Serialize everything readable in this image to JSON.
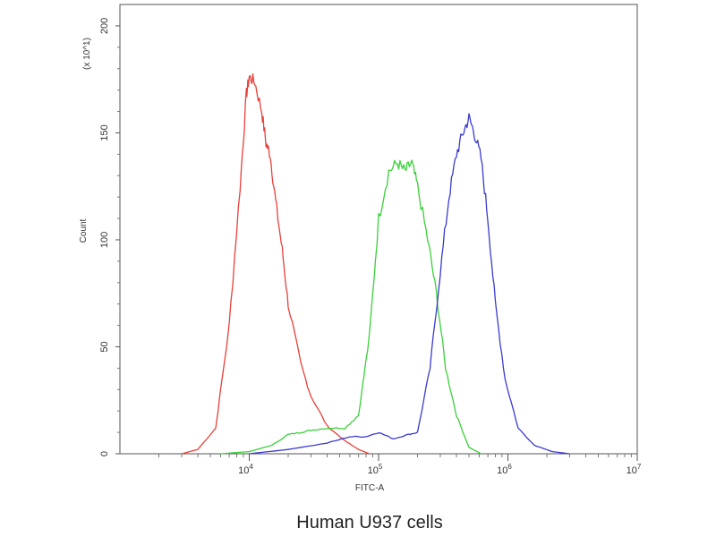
{
  "chart_data": {
    "type": "line",
    "title": "",
    "xlabel": "FITC-A",
    "ylabel": "Count",
    "y_multiplier_label": "(x 10^1)",
    "caption": "Human U937 cells",
    "x_scale": "log",
    "xlim": [
      1000,
      10000000
    ],
    "ylim": [
      0,
      210
    ],
    "grid": false,
    "legend": "none",
    "x_ticks": [
      {
        "value": 10000,
        "base": "10",
        "exp": "4"
      },
      {
        "value": 100000,
        "base": "10",
        "exp": "5"
      },
      {
        "value": 1000000,
        "base": "10",
        "exp": "6"
      },
      {
        "value": 10000000,
        "base": "10",
        "exp": "7"
      }
    ],
    "y_ticks": [
      {
        "value": 0,
        "label": "0"
      },
      {
        "value": 50,
        "label": "50"
      },
      {
        "value": 100,
        "label": "100"
      },
      {
        "value": 150,
        "label": "150"
      },
      {
        "value": 200,
        "label": "200"
      }
    ],
    "series": [
      {
        "color": "#e8403a",
        "x": [
          3000,
          4000,
          5500,
          7000,
          8500,
          9500,
          10000,
          11000,
          12500,
          13500,
          14500,
          16000,
          18000,
          20000,
          25000,
          30000,
          40000,
          55000,
          70000,
          85000
        ],
        "y": [
          0,
          2,
          12,
          60,
          125,
          168,
          176,
          174,
          160,
          145,
          140,
          118,
          95,
          70,
          42,
          27,
          13,
          6,
          2,
          0
        ]
      },
      {
        "color": "#3ad03a",
        "x": [
          6000,
          10000,
          15000,
          20000,
          25000,
          30000,
          40000,
          55000,
          70000,
          85000,
          100000,
          120000,
          140000,
          160000,
          180000,
          200000,
          240000,
          280000,
          330000,
          400000,
          500000,
          620000
        ],
        "y": [
          0,
          1,
          4,
          9,
          10,
          11,
          12,
          12,
          18,
          55,
          110,
          132,
          136,
          132,
          136,
          125,
          100,
          75,
          40,
          18,
          3,
          0
        ]
      },
      {
        "color": "#3a3ad0",
        "x": [
          10000,
          20000,
          40000,
          60000,
          80000,
          100000,
          130000,
          170000,
          200000,
          250000,
          300000,
          350000,
          400000,
          450000,
          500000,
          550000,
          620000,
          700000,
          800000,
          950000,
          1200000,
          1600000,
          2200000,
          3000000
        ],
        "y": [
          0,
          2,
          5,
          8,
          8,
          10,
          7,
          9,
          10,
          40,
          85,
          120,
          140,
          150,
          157,
          150,
          138,
          110,
          70,
          35,
          12,
          4,
          1,
          0
        ]
      }
    ]
  }
}
